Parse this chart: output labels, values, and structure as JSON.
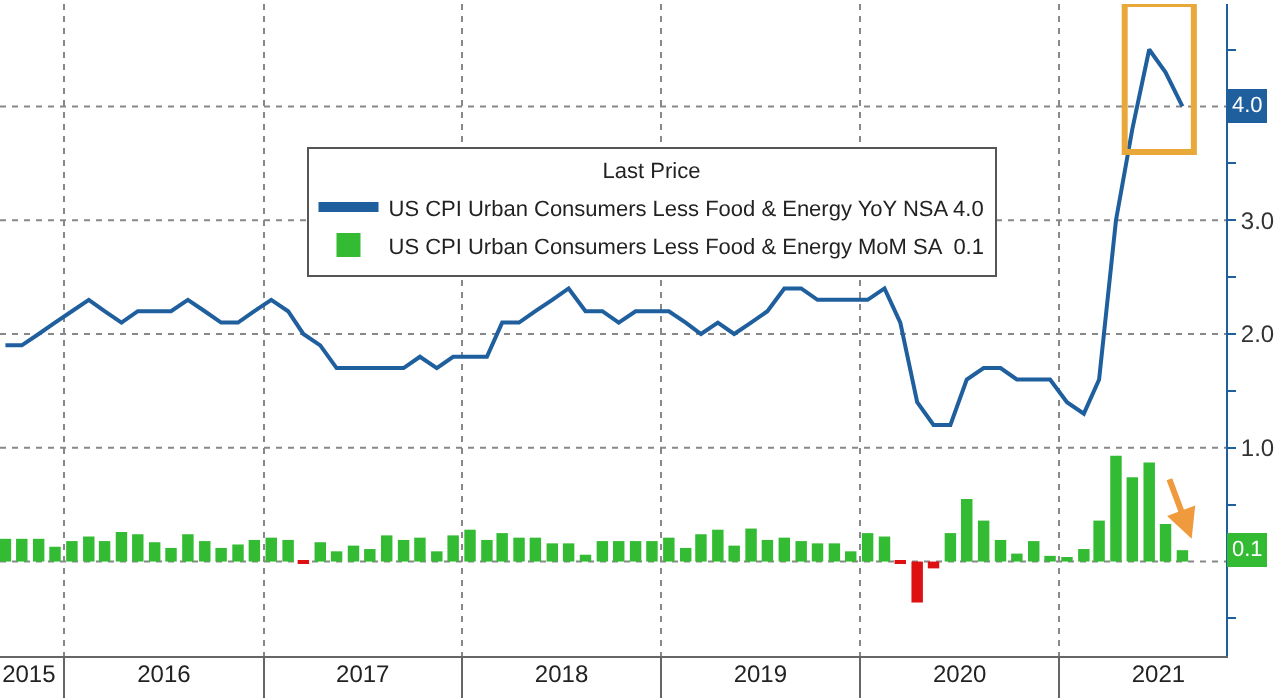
{
  "chart_data": {
    "type": "line",
    "legend_title": "Last Price",
    "legend": "top",
    "x": [
      "2015-09-15",
      "2015-10-15",
      "2015-11-15",
      "2015-12-15",
      "2016-01-15",
      "2016-02-15",
      "2016-03-15",
      "2016-04-15",
      "2016-05-15",
      "2016-06-15",
      "2016-07-15",
      "2016-08-15",
      "2016-09-15",
      "2016-10-15",
      "2016-11-15",
      "2016-12-15",
      "2017-01-15",
      "2017-02-15",
      "2017-03-15",
      "2017-04-15",
      "2017-05-15",
      "2017-06-15",
      "2017-07-15",
      "2017-08-15",
      "2017-09-15",
      "2017-10-15",
      "2017-11-15",
      "2017-12-15",
      "2018-01-15",
      "2018-02-15",
      "2018-03-15",
      "2018-04-15",
      "2018-05-15",
      "2018-06-15",
      "2018-07-15",
      "2018-08-15",
      "2018-09-15",
      "2018-10-15",
      "2018-11-15",
      "2018-12-15",
      "2019-01-15",
      "2019-02-15",
      "2019-03-15",
      "2019-04-15",
      "2019-05-15",
      "2019-06-15",
      "2019-07-15",
      "2019-08-15",
      "2019-09-15",
      "2019-10-15",
      "2019-11-15",
      "2019-12-15",
      "2020-01-15",
      "2020-02-15",
      "2020-03-15",
      "2020-04-15",
      "2020-05-15",
      "2020-06-15",
      "2020-07-15",
      "2020-08-15",
      "2020-09-15",
      "2020-10-15",
      "2020-11-15",
      "2020-12-15",
      "2021-01-15",
      "2021-02-15",
      "2021-03-15",
      "2021-04-15",
      "2021-05-15",
      "2021-06-15",
      "2021-07-15",
      "2021-08-15"
    ],
    "series": [
      {
        "name": "US CPI Urban Consumers Less Food & Energy YoY NSA 4.0",
        "color": "#1f5f9e",
        "values": [
          1.9,
          1.9,
          2.0,
          2.1,
          2.2,
          2.3,
          2.2,
          2.1,
          2.2,
          2.2,
          2.2,
          2.3,
          2.2,
          2.1,
          2.1,
          2.2,
          2.3,
          2.2,
          2.0,
          1.9,
          1.7,
          1.7,
          1.7,
          1.7,
          1.7,
          1.8,
          1.7,
          1.8,
          1.8,
          1.8,
          2.1,
          2.1,
          2.2,
          2.3,
          2.4,
          2.2,
          2.2,
          2.1,
          2.2,
          2.2,
          2.2,
          2.1,
          2.0,
          2.1,
          2.0,
          2.1,
          2.2,
          2.4,
          2.4,
          2.3,
          2.3,
          2.3,
          2.3,
          2.4,
          2.1,
          1.4,
          1.2,
          1.2,
          1.6,
          1.7,
          1.7,
          1.6,
          1.6,
          1.6,
          1.4,
          1.3,
          1.6,
          3.0,
          3.8,
          4.5,
          4.3,
          4.0
        ]
      },
      {
        "name": "US CPI Urban Consumers Less Food & Energy MoM SA  0.1",
        "type": "bar",
        "color": "#33bb33",
        "colors": [
          "#33bb33",
          "#33bb33",
          "#33bb33",
          "#33bb33",
          "#33bb33",
          "#33bb33",
          "#33bb33",
          "#33bb33",
          "#33bb33",
          "#33bb33",
          "#33bb33",
          "#33bb33",
          "#33bb33",
          "#33bb33",
          "#33bb33",
          "#33bb33",
          "#33bb33",
          "#33bb33",
          "#dd1111",
          "#33bb33",
          "#33bb33",
          "#33bb33",
          "#33bb33",
          "#33bb33",
          "#33bb33",
          "#33bb33",
          "#33bb33",
          "#33bb33",
          "#33bb33",
          "#33bb33",
          "#33bb33",
          "#33bb33",
          "#33bb33",
          "#33bb33",
          "#33bb33",
          "#33bb33",
          "#33bb33",
          "#33bb33",
          "#33bb33",
          "#33bb33",
          "#33bb33",
          "#33bb33",
          "#33bb33",
          "#33bb33",
          "#33bb33",
          "#33bb33",
          "#33bb33",
          "#33bb33",
          "#33bb33",
          "#33bb33",
          "#33bb33",
          "#33bb33",
          "#33bb33",
          "#33bb33",
          "#dd1111",
          "#dd1111",
          "#dd1111",
          "#33bb33",
          "#33bb33",
          "#33bb33",
          "#33bb33",
          "#33bb33",
          "#33bb33",
          "#33bb33",
          "#33bb33",
          "#33bb33",
          "#33bb33",
          "#33bb33",
          "#33bb33",
          "#33bb33",
          "#33bb33",
          "#33bb33"
        ],
        "values": [
          0.2,
          0.2,
          0.2,
          0.13,
          0.18,
          0.22,
          0.18,
          0.26,
          0.24,
          0.17,
          0.12,
          0.24,
          0.18,
          0.12,
          0.15,
          0.19,
          0.21,
          0.19,
          -0.01,
          0.17,
          0.09,
          0.14,
          0.11,
          0.23,
          0.19,
          0.21,
          0.09,
          0.23,
          0.28,
          0.19,
          0.25,
          0.21,
          0.21,
          0.16,
          0.16,
          0.06,
          0.18,
          0.18,
          0.18,
          0.18,
          0.21,
          0.12,
          0.24,
          0.28,
          0.14,
          0.29,
          0.19,
          0.21,
          0.18,
          0.16,
          0.16,
          0.09,
          0.25,
          0.22,
          -0.01,
          -0.36,
          -0.06,
          0.25,
          0.55,
          0.36,
          0.19,
          0.07,
          0.18,
          0.05,
          0.04,
          0.11,
          0.36,
          0.93,
          0.74,
          0.87,
          0.33,
          0.1
        ]
      }
    ],
    "annotations": [
      {
        "text": "4.0",
        "x": "2021-08-15",
        "y": 4.0
      },
      {
        "text": "0.1",
        "x": "2021-08-15",
        "y": 0.1
      }
    ],
    "xlim": [
      "2015-09-05",
      "2021-11-03"
    ],
    "xticks": [
      {
        "value": "2015-10-28",
        "label": "2015"
      },
      {
        "value": "2016-01-01",
        "label": null
      },
      {
        "value": "2016-07-02",
        "label": "2016"
      },
      {
        "value": "2017-01-01",
        "label": null
      },
      {
        "value": "2017-07-02",
        "label": "2017"
      },
      {
        "value": "2018-01-01",
        "label": null
      },
      {
        "value": "2018-07-02",
        "label": "2018"
      },
      {
        "value": "2019-01-01",
        "label": null
      },
      {
        "value": "2019-07-02",
        "label": "2019"
      },
      {
        "value": "2020-01-01",
        "label": null
      },
      {
        "value": "2020-07-02",
        "label": "2020"
      },
      {
        "value": "2021-01-01",
        "label": null
      },
      {
        "value": "2021-07-02",
        "label": "2021"
      }
    ],
    "ylim": [
      -0.83,
      4.9
    ],
    "yticks": [
      {
        "value": -0.5,
        "label": null
      },
      {
        "value": 0,
        "label": null
      },
      {
        "value": 0.5,
        "label": null
      },
      {
        "value": 1,
        "label": "1.0"
      },
      {
        "value": 1.5,
        "label": null
      },
      {
        "value": 2,
        "label": "2.0"
      },
      {
        "value": 2.5,
        "label": null
      },
      {
        "value": 3,
        "label": "3.0"
      },
      {
        "value": 3.5,
        "label": null
      },
      {
        "value": 4,
        "label": null
      },
      {
        "value": 4.5,
        "label": null
      }
    ],
    "grid": true,
    "marker": "none",
    "line_style": "solid"
  }
}
